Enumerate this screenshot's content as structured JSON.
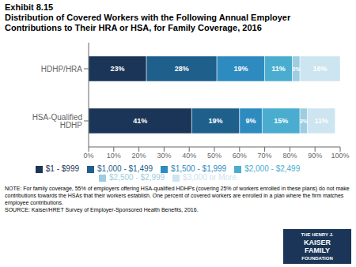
{
  "chart_data": {
    "type": "bar",
    "orientation": "horizontal",
    "stacked": true,
    "title": "Exhibit 8.15",
    "subtitle": "Distribution of Covered Workers with the Following Annual Employer\nContributions to Their HRA or HSA, for Family Coverage, 2016",
    "categories": [
      "HDHP/HRA",
      "HSA-Qualified HDHP"
    ],
    "series": [
      {
        "name": "$1 - $999",
        "color": "#1a3557",
        "values": [
          23,
          41
        ],
        "value_labels": [
          "23%",
          "41%"
        ]
      },
      {
        "name": "$1,000 - $1,499",
        "color": "#1e5f8c",
        "values": [
          28,
          19
        ],
        "value_labels": [
          "28%",
          "19%"
        ]
      },
      {
        "name": "$1,500 - $1,999",
        "color": "#2e8bbf",
        "values": [
          19,
          9
        ],
        "value_labels": [
          "19%",
          "9%"
        ]
      },
      {
        "name": "$2,000 - $2,499",
        "color": "#4aadcf",
        "values": [
          11,
          15
        ],
        "value_labels": [
          "11%",
          "15%"
        ]
      },
      {
        "name": "$2,500 - $2,999",
        "color": "#9dcde0",
        "values": [
          3,
          3
        ],
        "value_labels": [
          "3%",
          "3%"
        ]
      },
      {
        "name": "$3,000 or More",
        "color": "#cce5f0",
        "values": [
          16,
          11
        ],
        "value_labels": [
          "16%",
          "11%"
        ]
      }
    ],
    "xlim": [
      0,
      100
    ],
    "xticks": [
      {
        "value": 0,
        "label": "0%"
      },
      {
        "value": 10,
        "label": "10%"
      },
      {
        "value": 20,
        "label": "20%"
      },
      {
        "value": 30,
        "label": "30%"
      },
      {
        "value": 40,
        "label": "40%"
      },
      {
        "value": 50,
        "label": "50%"
      },
      {
        "value": 60,
        "label": "60%"
      },
      {
        "value": 70,
        "label": "70%"
      },
      {
        "value": 80,
        "label": "80%"
      },
      {
        "value": 90,
        "label": "90%"
      },
      {
        "value": 100,
        "label": "100%"
      }
    ],
    "data_labels": true,
    "legend": "bottom",
    "grid": false,
    "annotations": [
      "NOTE:  For family coverage, 55% of employers offering HSA-qualified HDHPs (covering 25% of workers enrolled in these plans) do not make",
      "contributions towards the HSAs that their workers establish. One percent of covered workers are enrolled in a plan where the firm matches",
      "employee contributions.",
      "SOURCE:  Kaiser/HRET Survey of Employer-Sponsored Health Benefits, 2016.",
      "THE HENRY J.",
      "KAISER",
      "FAMILY",
      "FOUNDATION"
    ]
  }
}
